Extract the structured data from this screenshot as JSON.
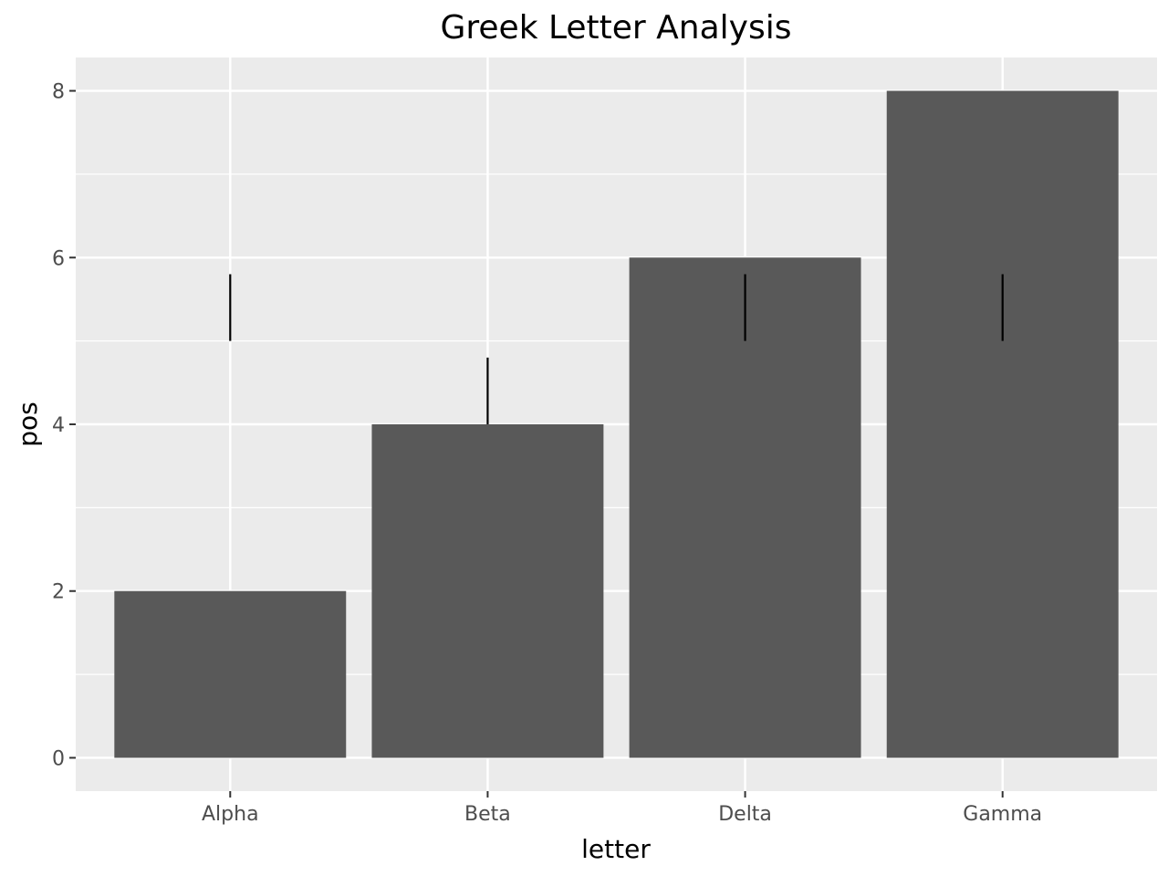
{
  "chart_data": {
    "type": "bar",
    "title": "Greek Letter Analysis",
    "xlabel": "letter",
    "ylabel": "pos",
    "categories": [
      "Alpha",
      "Beta",
      "Delta",
      "Gamma"
    ],
    "values": [
      2,
      4,
      6,
      8
    ],
    "segments": [
      {
        "category": "Alpha",
        "y_start": 5,
        "y_end": 5.8
      },
      {
        "category": "Beta",
        "y_start": 4,
        "y_end": 4.8
      },
      {
        "category": "Delta",
        "y_start": 5,
        "y_end": 5.8
      },
      {
        "category": "Gamma",
        "y_start": 5,
        "y_end": 5.8
      }
    ],
    "ylim": [
      -0.4,
      8.4
    ],
    "yticks": [
      0,
      2,
      4,
      6,
      8
    ],
    "ytick_labels": [
      "0",
      "2",
      "4",
      "6",
      "8"
    ],
    "grid": true,
    "legend": "none",
    "colors": {
      "bar": "#595959",
      "panel_background": "#ebebeb",
      "grid": "#ffffff",
      "segment": "#000000",
      "tick_label": "#4d4d4d",
      "tick": "#333333"
    }
  }
}
